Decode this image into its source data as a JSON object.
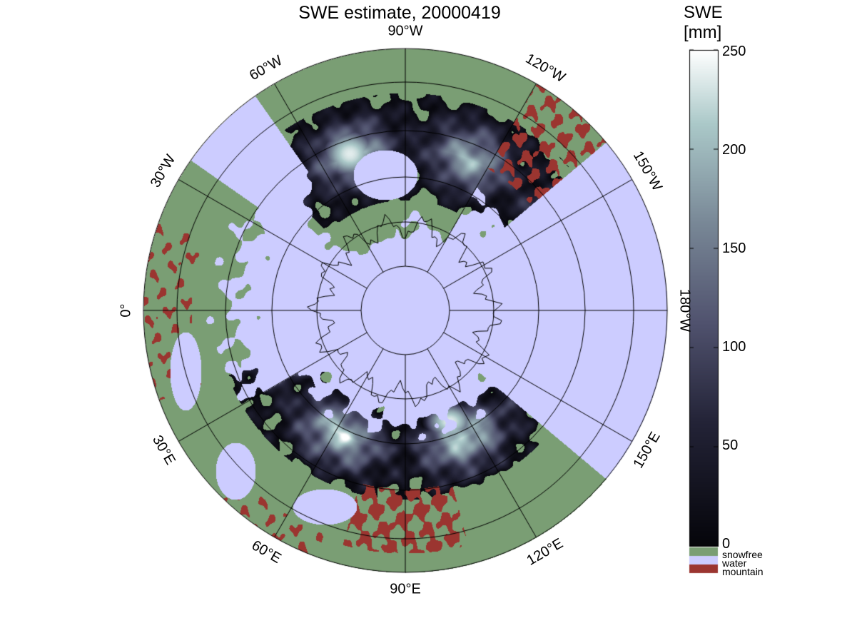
{
  "title": "SWE estimate, 20000419",
  "colorbar": {
    "title_line1": "SWE",
    "title_line2": "[mm]",
    "ticks": [
      "0",
      "50",
      "100",
      "150",
      "200",
      "250"
    ],
    "range": [
      0,
      250
    ],
    "categories": [
      {
        "label": "snowfree",
        "color": "#7a9e74"
      },
      {
        "label": "water",
        "color": "#ccccff"
      },
      {
        "label": "mountain",
        "color": "#9b3530"
      }
    ]
  },
  "map": {
    "projection": "polar stereographic, north pole",
    "meridian_labels": [
      "90°W",
      "120°W",
      "150°W",
      "180°W",
      "150°E",
      "120°E",
      "90°E",
      "60°E",
      "30°E",
      "0°",
      "30°W",
      "60°W"
    ],
    "colors": {
      "ocean": "#ccccff",
      "land": "#7a9e74",
      "mountain": "#9b3530",
      "grid": "#000000"
    }
  }
}
